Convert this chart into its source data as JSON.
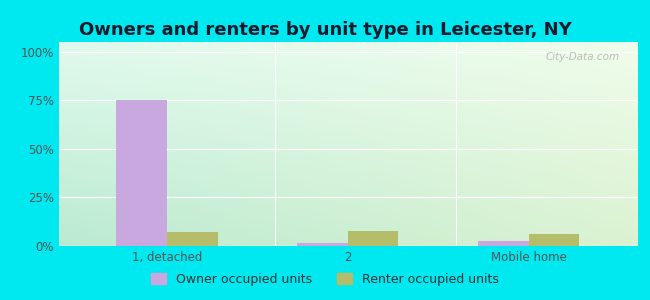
{
  "title": "Owners and renters by unit type in Leicester, NY",
  "categories": [
    "1, detached",
    "2",
    "Mobile home"
  ],
  "owner_values": [
    75.0,
    1.5,
    2.5
  ],
  "renter_values": [
    7.0,
    7.5,
    6.0
  ],
  "owner_color": "#c9a8e0",
  "renter_color": "#b5bc6a",
  "yticks": [
    0,
    25,
    50,
    75,
    100
  ],
  "ytick_labels": [
    "0%",
    "25%",
    "50%",
    "75%",
    "100%"
  ],
  "ylim": [
    0,
    105
  ],
  "bg_grad_left": "#c0e8d8",
  "bg_grad_right": "#eaf5e0",
  "bg_grad_top": "#f5fff5",
  "bg_grad_bottom": "#c8e8c8",
  "outer_bg": "#00e8f0",
  "bar_width": 0.28,
  "title_fontsize": 13,
  "legend_fontsize": 9,
  "tick_fontsize": 8.5,
  "watermark": "City-Data.com",
  "legend_owner": "Owner occupied units",
  "legend_renter": "Renter occupied units"
}
